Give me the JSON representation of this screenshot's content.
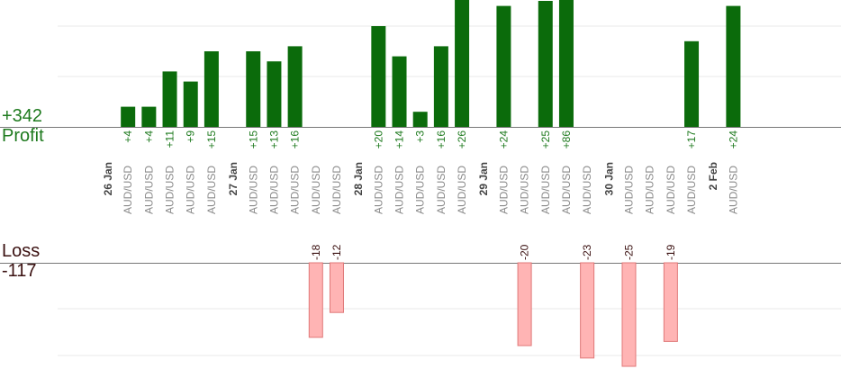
{
  "totals": {
    "profit_value": "+342",
    "profit_label": "Profit",
    "loss_label": "Loss",
    "loss_value": "-117"
  },
  "colors": {
    "profit_bar": "#0b6b0b",
    "profit_text": "#1e7a1e",
    "loss_bar": "#ffb4b4",
    "loss_border": "#e07878",
    "instrument_text": "#8a8a8a",
    "date_text": "#444444",
    "loss_text": "#3a1010",
    "axis_line": "#777777",
    "gridline": "#e8e8e8"
  },
  "chart_data": {
    "type": "bar",
    "title": "",
    "grid": true,
    "instrument": "AUD/USD",
    "slots": [
      {
        "date": "26 Jan"
      },
      {
        "instrument": "AUD/USD",
        "value": 4,
        "label": "+4"
      },
      {
        "instrument": "AUD/USD",
        "value": 4,
        "label": "+4"
      },
      {
        "instrument": "AUD/USD",
        "value": 11,
        "label": "+11"
      },
      {
        "instrument": "AUD/USD",
        "value": 9,
        "label": "+9"
      },
      {
        "instrument": "AUD/USD",
        "value": 15,
        "label": "+15"
      },
      {
        "date": "27 Jan"
      },
      {
        "instrument": "AUD/USD",
        "value": 15,
        "label": "+15"
      },
      {
        "instrument": "AUD/USD",
        "value": 13,
        "label": "+13"
      },
      {
        "instrument": "AUD/USD",
        "value": 16,
        "label": "+16"
      },
      {
        "instrument": "AUD/USD",
        "value": -18,
        "label": "-18"
      },
      {
        "instrument": "AUD/USD",
        "value": -12,
        "label": "-12"
      },
      {
        "date": "28 Jan"
      },
      {
        "instrument": "AUD/USD",
        "value": 20,
        "label": "+20"
      },
      {
        "instrument": "AUD/USD",
        "value": 14,
        "label": "+14"
      },
      {
        "instrument": "AUD/USD",
        "value": 3,
        "label": "+3"
      },
      {
        "instrument": "AUD/USD",
        "value": 16,
        "label": "+16"
      },
      {
        "instrument": "AUD/USD",
        "value": 26,
        "label": "+26"
      },
      {
        "date": "29 Jan"
      },
      {
        "instrument": "AUD/USD",
        "value": 24,
        "label": "+24"
      },
      {
        "instrument": "AUD/USD",
        "value": -20,
        "label": "-20"
      },
      {
        "instrument": "AUD/USD",
        "value": 25,
        "label": "+25"
      },
      {
        "instrument": "AUD/USD",
        "value": 86,
        "label": "+86"
      },
      {
        "instrument": "AUD/USD",
        "value": -23,
        "label": "-23"
      },
      {
        "date": "30 Jan"
      },
      {
        "instrument": "AUD/USD",
        "value": -25,
        "label": "-25"
      },
      {
        "instrument": "AUD/USD",
        "value": 0,
        "label": ""
      },
      {
        "instrument": "AUD/USD",
        "value": -19,
        "label": "-19"
      },
      {
        "instrument": "AUD/USD",
        "value": 17,
        "label": "+17"
      },
      {
        "date": "2 Feb"
      },
      {
        "instrument": "AUD/USD",
        "value": 24,
        "label": "+24"
      }
    ]
  }
}
